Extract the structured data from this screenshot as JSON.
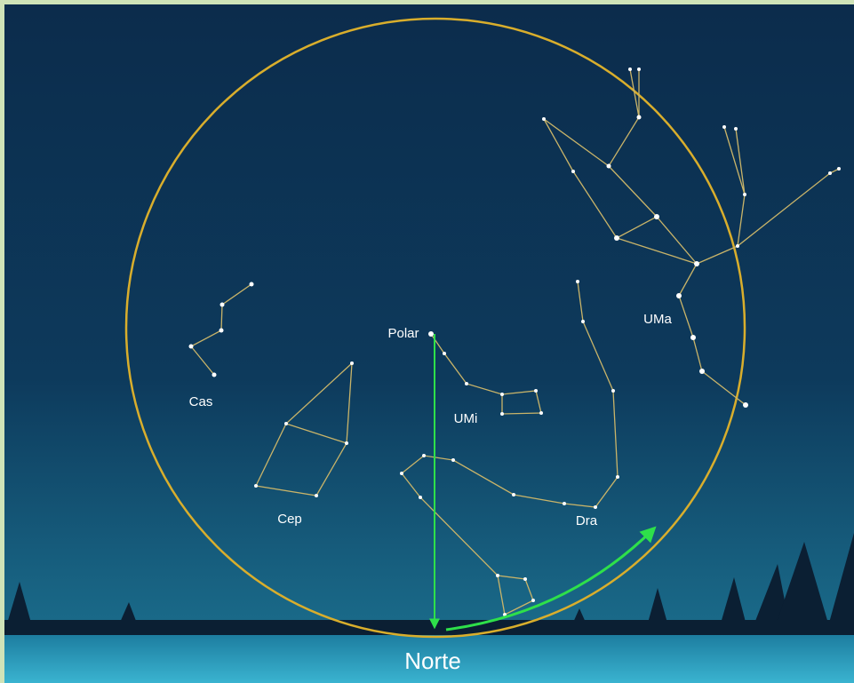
{
  "star": "Polar",
  "constellations": [
    "Cas",
    "Cep",
    "UMi",
    "Dra",
    "UMa"
  ],
  "direction": "Norte"
}
